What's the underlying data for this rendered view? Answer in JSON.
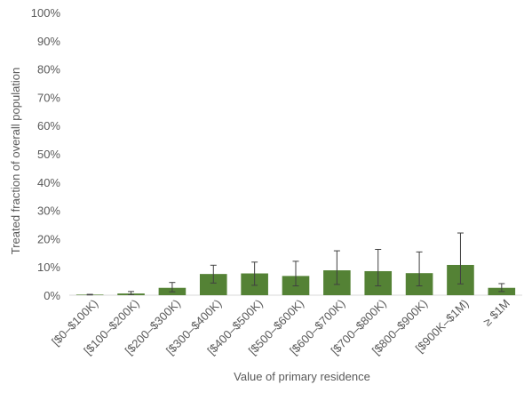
{
  "chart_data": {
    "type": "bar",
    "title": "",
    "xlabel": "Value of primary residence",
    "ylabel": "Treated fraction of overall population",
    "ylim": [
      0,
      100
    ],
    "y_tick_labels": [
      "0%",
      "10%",
      "20%",
      "30%",
      "40%",
      "50%",
      "60%",
      "70%",
      "80%",
      "90%",
      "100%"
    ],
    "categories": [
      "[$0–$100K)",
      "[$100–$200K)",
      "[$200–$300K)",
      "[$300–$400K)",
      "[$400–$500K)",
      "[$500–$600K)",
      "[$600–$700K)",
      "[$700–$800K)",
      "[$800–$900K)",
      "[$900K–$1M)",
      "≥ $1M"
    ],
    "values": [
      0.2,
      0.6,
      2.6,
      7.5,
      7.7,
      6.8,
      8.8,
      8.5,
      7.8,
      10.7,
      2.6
    ],
    "error_low": [
      0.1,
      0.2,
      1.2,
      4.3,
      3.5,
      3.3,
      3.8,
      3.3,
      3.3,
      4.0,
      1.3
    ],
    "error_high": [
      0.3,
      1.3,
      4.5,
      10.6,
      11.7,
      12.0,
      15.7,
      16.2,
      15.3,
      22.0,
      4.1
    ],
    "grid": false,
    "legend": "none",
    "colors": {
      "bar": "#548235",
      "error_bar": "#404040",
      "axis": "#d9d9d9",
      "text": "#595959"
    }
  }
}
